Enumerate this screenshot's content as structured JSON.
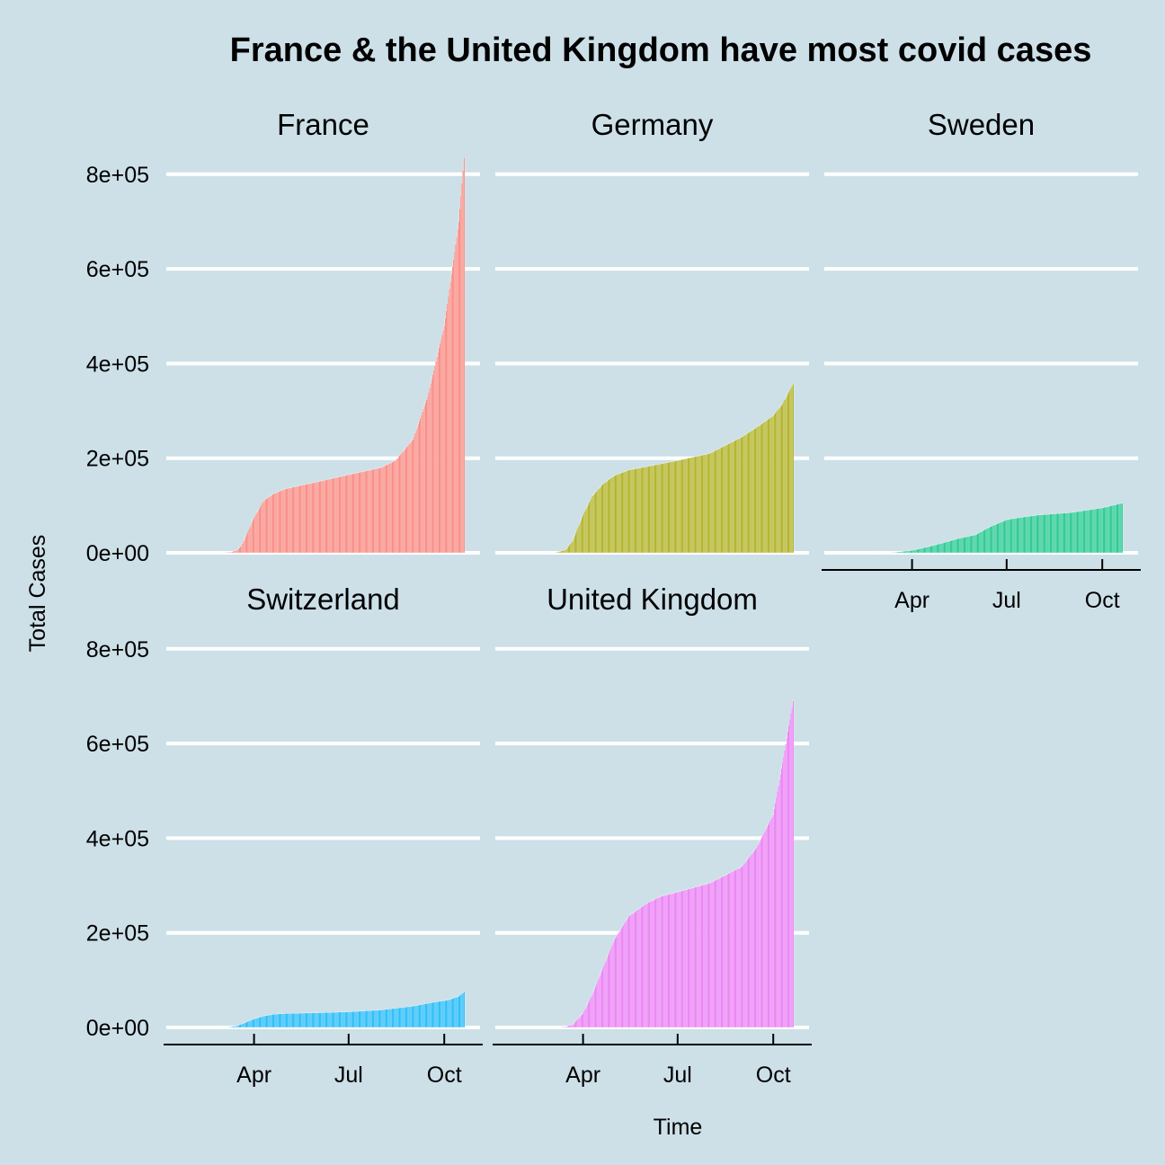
{
  "chart_data": {
    "type": "bar",
    "title": "France & the United Kingdom have most covid cases",
    "xlabel": "Time",
    "ylabel": "Total Cases",
    "ylim": [
      0,
      840000
    ],
    "y_ticks": [
      0,
      200000,
      400000,
      600000,
      800000
    ],
    "y_tick_labels": [
      "0e+00",
      "2e+05",
      "4e+05",
      "6e+05",
      "8e+05"
    ],
    "x_ticks": [
      {
        "label": "Apr",
        "date": "2020-04-01"
      },
      {
        "label": "Jul",
        "date": "2020-07-01"
      },
      {
        "label": "Oct",
        "date": "2020-10-01"
      }
    ],
    "xlim": [
      "2020-01-05",
      "2020-11-07"
    ],
    "grid": "horizontal major lines",
    "legend": "none",
    "facets": [
      {
        "name": "France",
        "color": "#F8766D",
        "last_date": "2020-10-20",
        "series": [
          [
            "2020-02-25",
            0
          ],
          [
            "2020-03-01",
            200
          ],
          [
            "2020-03-10",
            1800
          ],
          [
            "2020-03-15",
            5000
          ],
          [
            "2020-03-20",
            15000
          ],
          [
            "2020-03-25",
            40000
          ],
          [
            "2020-03-31",
            70000
          ],
          [
            "2020-04-05",
            90000
          ],
          [
            "2020-04-10",
            110000
          ],
          [
            "2020-04-20",
            125000
          ],
          [
            "2020-05-01",
            135000
          ],
          [
            "2020-05-15",
            142000
          ],
          [
            "2020-06-01",
            150000
          ],
          [
            "2020-07-01",
            165000
          ],
          [
            "2020-08-01",
            180000
          ],
          [
            "2020-08-15",
            195000
          ],
          [
            "2020-09-01",
            240000
          ],
          [
            "2020-09-15",
            330000
          ],
          [
            "2020-10-01",
            480000
          ],
          [
            "2020-10-10",
            620000
          ],
          [
            "2020-10-15",
            700000
          ],
          [
            "2020-10-20",
            835000
          ]
        ]
      },
      {
        "name": "Germany",
        "color": "#A3A500",
        "last_date": "2020-10-20",
        "series": [
          [
            "2020-02-25",
            0
          ],
          [
            "2020-03-05",
            500
          ],
          [
            "2020-03-15",
            6000
          ],
          [
            "2020-03-22",
            25000
          ],
          [
            "2020-04-01",
            80000
          ],
          [
            "2020-04-10",
            120000
          ],
          [
            "2020-04-20",
            145000
          ],
          [
            "2020-05-01",
            163000
          ],
          [
            "2020-05-15",
            175000
          ],
          [
            "2020-06-01",
            182000
          ],
          [
            "2020-07-01",
            195000
          ],
          [
            "2020-08-01",
            210000
          ],
          [
            "2020-09-01",
            245000
          ],
          [
            "2020-09-15",
            265000
          ],
          [
            "2020-10-01",
            290000
          ],
          [
            "2020-10-10",
            315000
          ],
          [
            "2020-10-20",
            357000
          ]
        ]
      },
      {
        "name": "Sweden",
        "color": "#00BF7D",
        "last_date": "2020-10-20",
        "series": [
          [
            "2020-02-25",
            0
          ],
          [
            "2020-03-15",
            1000
          ],
          [
            "2020-04-01",
            5000
          ],
          [
            "2020-04-15",
            12000
          ],
          [
            "2020-05-01",
            21000
          ],
          [
            "2020-05-15",
            30000
          ],
          [
            "2020-06-01",
            38000
          ],
          [
            "2020-06-15",
            55000
          ],
          [
            "2020-07-01",
            70000
          ],
          [
            "2020-07-15",
            75000
          ],
          [
            "2020-08-01",
            80000
          ],
          [
            "2020-09-01",
            85000
          ],
          [
            "2020-10-01",
            95000
          ],
          [
            "2020-10-20",
            105000
          ]
        ]
      },
      {
        "name": "Switzerland",
        "color": "#00B0F6",
        "last_date": "2020-10-20",
        "series": [
          [
            "2020-02-25",
            0
          ],
          [
            "2020-03-05",
            300
          ],
          [
            "2020-03-15",
            3000
          ],
          [
            "2020-03-22",
            9000
          ],
          [
            "2020-04-01",
            18000
          ],
          [
            "2020-04-10",
            24000
          ],
          [
            "2020-04-20",
            28000
          ],
          [
            "2020-05-01",
            29500
          ],
          [
            "2020-06-01",
            31000
          ],
          [
            "2020-07-01",
            33000
          ],
          [
            "2020-08-01",
            37000
          ],
          [
            "2020-09-01",
            45000
          ],
          [
            "2020-09-20",
            53000
          ],
          [
            "2020-10-05",
            58000
          ],
          [
            "2020-10-15",
            66000
          ],
          [
            "2020-10-20",
            75000
          ]
        ]
      },
      {
        "name": "United Kingdom",
        "color": "#E76BF3",
        "last_date": "2020-10-20",
        "series": [
          [
            "2020-02-25",
            0
          ],
          [
            "2020-03-05",
            200
          ],
          [
            "2020-03-15",
            1500
          ],
          [
            "2020-03-22",
            6000
          ],
          [
            "2020-04-01",
            30000
          ],
          [
            "2020-04-10",
            70000
          ],
          [
            "2020-04-20",
            125000
          ],
          [
            "2020-05-01",
            185000
          ],
          [
            "2020-05-15",
            235000
          ],
          [
            "2020-06-01",
            262000
          ],
          [
            "2020-06-15",
            277000
          ],
          [
            "2020-07-01",
            286000
          ],
          [
            "2020-08-01",
            305000
          ],
          [
            "2020-09-01",
            340000
          ],
          [
            "2020-09-15",
            380000
          ],
          [
            "2020-10-01",
            450000
          ],
          [
            "2020-10-10",
            560000
          ],
          [
            "2020-10-20",
            690000
          ]
        ]
      }
    ]
  }
}
